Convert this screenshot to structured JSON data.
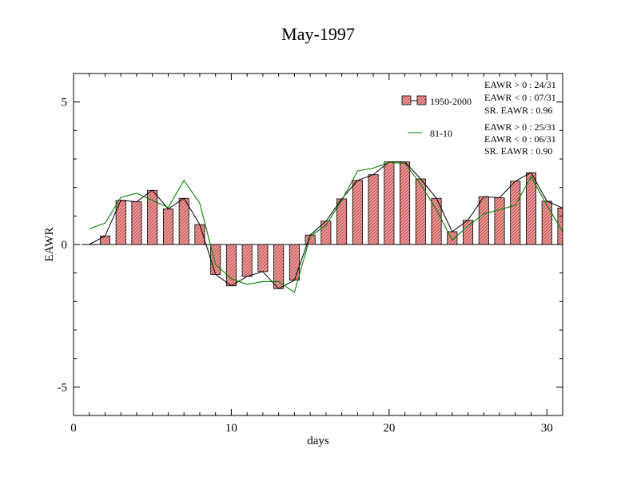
{
  "chart_data": {
    "type": "bar",
    "title": "May-1997",
    "xlabel": "days",
    "ylabel": "EAWR",
    "xlim": [
      0,
      31
    ],
    "ylim": [
      -6,
      6
    ],
    "xticks": [
      0,
      10,
      20,
      30
    ],
    "xtick_labels": [
      "0",
      "10",
      "20",
      "30"
    ],
    "yticks": [
      -5,
      0,
      5
    ],
    "ytick_labels": [
      "-5",
      "0",
      "5"
    ],
    "x": [
      1,
      2,
      3,
      4,
      5,
      6,
      7,
      8,
      9,
      10,
      11,
      12,
      13,
      14,
      15,
      16,
      17,
      18,
      19,
      20,
      21,
      22,
      23,
      24,
      25,
      26,
      27,
      28,
      29,
      30,
      31
    ],
    "series": [
      {
        "name": "1950-2000",
        "style": "bar",
        "values": [
          0.0,
          0.3,
          1.55,
          1.5,
          1.9,
          1.25,
          1.62,
          0.7,
          -1.05,
          -1.45,
          -1.12,
          -0.95,
          -1.55,
          -1.25,
          0.33,
          0.82,
          1.6,
          2.25,
          2.45,
          2.9,
          2.9,
          2.3,
          1.62,
          0.45,
          0.85,
          1.68,
          1.64,
          2.22,
          2.52,
          1.52,
          1.28
        ]
      },
      {
        "name": "81-10",
        "style": "line",
        "values": [
          0.55,
          0.75,
          1.65,
          1.8,
          1.55,
          1.3,
          2.25,
          1.45,
          -0.7,
          -1.2,
          -1.4,
          -1.3,
          -1.3,
          -1.68,
          0.28,
          0.68,
          1.55,
          2.58,
          2.68,
          2.88,
          2.85,
          2.12,
          1.22,
          0.15,
          0.65,
          1.08,
          1.22,
          1.38,
          2.38,
          1.38,
          0.45
        ]
      }
    ],
    "legend_position": "top-right",
    "grid": false,
    "colors": {
      "bar_fill": "#f0a0a0",
      "bar_hatch": "#b04040",
      "line": "#008000",
      "black_line": "#000000"
    },
    "stats": [
      {
        "series": "1950-2000",
        "lines": [
          "EAWR > 0 : 24/31",
          "EAWR < 0 : 07/31",
          "SR. EAWR :  0.96"
        ]
      },
      {
        "series": "81-10",
        "lines": [
          "EAWR > 0 : 25/31",
          "EAWR < 0 : 06/31",
          "SR. EAWR :  0.90"
        ]
      }
    ]
  }
}
